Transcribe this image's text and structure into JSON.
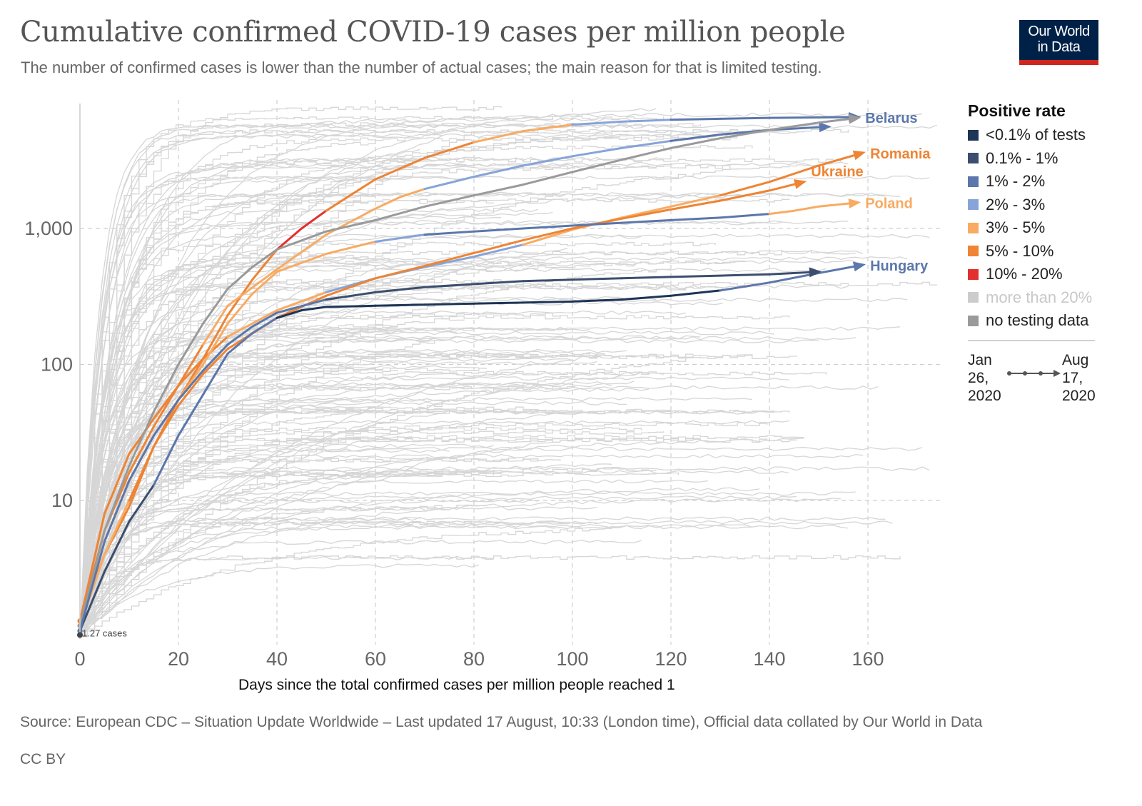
{
  "header": {
    "title": "Cumulative confirmed COVID-19 cases per million people",
    "subtitle": "The number of confirmed cases is lower than the number of actual cases; the main reason for that is limited testing.",
    "logo_line1": "Our World",
    "logo_line2": "in Data"
  },
  "footer": {
    "source": "Source: European CDC – Situation Update Worldwide – Last updated 17 August, 10:33 (London time), Official data collated by Our World in Data",
    "license": "CC BY"
  },
  "legend": {
    "title": "Positive rate",
    "items": [
      {
        "label": "<0.1% of tests",
        "color": "#1d3557"
      },
      {
        "label": "0.1% - 1%",
        "color": "#3c4e6e"
      },
      {
        "label": "1% - 2%",
        "color": "#5b77ab"
      },
      {
        "label": "2% - 3%",
        "color": "#86a4d9"
      },
      {
        "label": "3% - 5%",
        "color": "#f8ab62"
      },
      {
        "label": "5% - 10%",
        "color": "#ee8434"
      },
      {
        "label": "10% - 20%",
        "color": "#e3302e"
      },
      {
        "label": "more than 20%",
        "color": "#cccccc"
      },
      {
        "label": "no testing data",
        "color": "#9a9a9a"
      }
    ],
    "time_from": [
      "Jan",
      "26,",
      "2020"
    ],
    "time_to": [
      "Aug",
      "17,",
      "2020"
    ]
  },
  "chart_data": {
    "type": "line",
    "title": "Cumulative confirmed COVID-19 cases per million people",
    "subtitle": "The number of confirmed cases is lower than the number of actual cases; the main reason for that is limited testing.",
    "xlabel": "Days since the total confirmed cases per million people reached 1",
    "ylabel": "",
    "x_ticks": [
      0,
      20,
      40,
      60,
      80,
      100,
      120,
      140,
      160
    ],
    "y_ticks": [
      10,
      100,
      1000
    ],
    "y_tick_labels": [
      "10",
      "100",
      "1,000"
    ],
    "y_scale": "log",
    "xlim": [
      0,
      175
    ],
    "ylim": [
      1,
      7000
    ],
    "grid": true,
    "start_annotation": "1.27 cases",
    "color_by": "Positive rate",
    "series": [
      {
        "name": "Belarus",
        "label_color": "#5b77ab",
        "x": [
          0,
          5,
          10,
          15,
          20,
          25,
          30,
          35,
          40,
          45,
          50,
          60,
          70,
          80,
          90,
          100,
          110,
          120,
          130,
          140,
          150,
          158
        ],
        "y": [
          1.3,
          4,
          9,
          25,
          55,
          110,
          230,
          420,
          700,
          1000,
          1350,
          2300,
          3300,
          4300,
          5200,
          5800,
          6100,
          6300,
          6400,
          6500,
          6550,
          6600
        ],
        "bands": [
          "5% - 10%",
          "5% - 10%",
          "5% - 10%",
          "5% - 10%",
          "5% - 10%",
          "5% - 10%",
          "5% - 10%",
          "5% - 10%",
          "5% - 10%",
          "10% - 20%",
          "10% - 20%",
          "5% - 10%",
          "5% - 10%",
          "5% - 10%",
          "3% - 5%",
          "3% - 5%",
          "2% - 3%",
          "2% - 3%",
          "1% - 2%",
          "1% - 2%",
          "1% - 2%",
          "1% - 2%"
        ]
      },
      {
        "name": "Romania",
        "label_color": "#ee8434",
        "x": [
          0,
          5,
          10,
          15,
          20,
          25,
          30,
          40,
          50,
          60,
          70,
          80,
          90,
          100,
          110,
          120,
          130,
          140,
          150,
          159
        ],
        "y": [
          1.3,
          8,
          22,
          40,
          70,
          110,
          160,
          250,
          340,
          430,
          520,
          620,
          760,
          980,
          1200,
          1450,
          1750,
          2200,
          2900,
          3600
        ],
        "bands": [
          "5% - 10%",
          "5% - 10%",
          "5% - 10%",
          "5% - 10%",
          "5% - 10%",
          "5% - 10%",
          "5% - 10%",
          "3% - 5%",
          "3% - 5%",
          "2% - 3%",
          "2% - 3%",
          "2% - 3%",
          "2% - 3%",
          "3% - 5%",
          "3% - 5%",
          "3% - 5%",
          "3% - 5%",
          "5% - 10%",
          "5% - 10%",
          "5% - 10%"
        ]
      },
      {
        "name": "Ukraine",
        "label_color": "#ee8434",
        "x": [
          0,
          5,
          10,
          15,
          20,
          25,
          30,
          40,
          50,
          60,
          70,
          80,
          90,
          100,
          110,
          120,
          130,
          140,
          147
        ],
        "y": [
          1.2,
          4,
          10,
          25,
          50,
          85,
          130,
          220,
          320,
          430,
          530,
          660,
          820,
          1000,
          1180,
          1380,
          1600,
          1900,
          2200
        ],
        "bands": [
          "3% - 5%",
          "3% - 5%",
          "3% - 5%",
          "5% - 10%",
          "5% - 10%",
          "5% - 10%",
          "5% - 10%",
          "5% - 10%",
          "5% - 10%",
          "5% - 10%",
          "5% - 10%",
          "5% - 10%",
          "5% - 10%",
          "5% - 10%",
          "5% - 10%",
          "5% - 10%",
          "5% - 10%",
          "5% - 10%",
          "5% - 10%"
        ]
      },
      {
        "name": "Poland",
        "label_color": "#f8ab62",
        "x": [
          0,
          5,
          10,
          15,
          20,
          25,
          30,
          35,
          40,
          50,
          60,
          70,
          80,
          90,
          100,
          110,
          120,
          130,
          140,
          145,
          150,
          158
        ],
        "y": [
          1.2,
          5,
          14,
          30,
          55,
          100,
          200,
          330,
          480,
          650,
          800,
          900,
          950,
          1000,
          1050,
          1100,
          1150,
          1200,
          1280,
          1350,
          1450,
          1550
        ],
        "bands": [
          "3% - 5%",
          "3% - 5%",
          "3% - 5%",
          "3% - 5%",
          "3% - 5%",
          "3% - 5%",
          "3% - 5%",
          "3% - 5%",
          "3% - 5%",
          "3% - 5%",
          "3% - 5%",
          "2% - 3%",
          "1% - 2%",
          "1% - 2%",
          "1% - 2%",
          "1% - 2%",
          "1% - 2%",
          "1% - 2%",
          "1% - 2%",
          "3% - 5%",
          "3% - 5%",
          "3% - 5%"
        ]
      },
      {
        "name": "Hungary",
        "label_color": "#5b77ab",
        "x": [
          0,
          5,
          10,
          15,
          20,
          25,
          30,
          35,
          40,
          45,
          50,
          60,
          70,
          80,
          90,
          100,
          110,
          120,
          130,
          140,
          150,
          159
        ],
        "y": [
          1.1,
          3,
          7,
          13,
          30,
          60,
          120,
          170,
          220,
          250,
          265,
          270,
          275,
          280,
          285,
          290,
          300,
          320,
          350,
          400,
          470,
          540
        ],
        "bands": [
          "0.1% - 1%",
          "0.1% - 1%",
          "0.1% - 1%",
          "0.1% - 1%",
          "1% - 2%",
          "1% - 2%",
          "1% - 2%",
          "1% - 2%",
          "1% - 2%",
          "<0.1% of tests",
          "<0.1% of tests",
          "<0.1% of tests",
          "<0.1% of tests",
          "<0.1% of tests",
          "<0.1% of tests",
          "<0.1% of tests",
          "<0.1% of tests",
          "<0.1% of tests",
          "<0.1% of tests",
          "1% - 2%",
          "1% - 2%",
          "1% - 2%"
        ]
      },
      {
        "name": "",
        "label_color": "#5b77ab",
        "x": [
          0,
          5,
          10,
          15,
          20,
          25,
          30,
          40,
          50,
          60,
          65,
          70,
          80,
          90,
          100,
          110,
          120,
          130,
          140,
          152
        ],
        "y": [
          1.3,
          6,
          16,
          35,
          70,
          140,
          270,
          500,
          900,
          1400,
          1700,
          1950,
          2400,
          2900,
          3400,
          3900,
          4400,
          4900,
          5300,
          5600
        ],
        "bands": [
          "5% - 10%",
          "5% - 10%",
          "5% - 10%",
          "5% - 10%",
          "5% - 10%",
          "5% - 10%",
          "3% - 5%",
          "3% - 5%",
          "3% - 5%",
          "3% - 5%",
          "3% - 5%",
          "3% - 5%",
          "2% - 3%",
          "2% - 3%",
          "2% - 3%",
          "2% - 3%",
          "2% - 3%",
          "1% - 2%",
          "1% - 2%",
          "1% - 2%"
        ]
      },
      {
        "name": "",
        "label_color": "#9a9a9a",
        "x": [
          0,
          5,
          10,
          15,
          20,
          25,
          30,
          35,
          40,
          50,
          60,
          70,
          80,
          90,
          100,
          110,
          120,
          130,
          140,
          150,
          158
        ],
        "y": [
          1.2,
          6,
          18,
          45,
          100,
          200,
          360,
          520,
          700,
          950,
          1150,
          1450,
          1750,
          2100,
          2600,
          3200,
          3900,
          4600,
          5300,
          6000,
          6500
        ],
        "bands": [
          "no testing data",
          "no testing data",
          "no testing data",
          "no testing data",
          "no testing data",
          "no testing data",
          "no testing data",
          "no testing data",
          "no testing data",
          "no testing data",
          "no testing data",
          "no testing data",
          "no testing data",
          "no testing data",
          "no testing data",
          "no testing data",
          "no testing data",
          "no testing data",
          "no testing data",
          "no testing data",
          "no testing data"
        ]
      },
      {
        "name": "",
        "label_color": "#3c4e6e",
        "x": [
          0,
          5,
          10,
          15,
          20,
          25,
          30,
          35,
          40,
          50,
          60,
          70,
          80,
          90,
          100,
          110,
          120,
          130,
          140,
          150
        ],
        "y": [
          1.1,
          5,
          14,
          30,
          55,
          90,
          140,
          190,
          240,
          300,
          340,
          370,
          390,
          410,
          420,
          430,
          440,
          450,
          460,
          480
        ],
        "bands": [
          "1% - 2%",
          "1% - 2%",
          "1% - 2%",
          "1% - 2%",
          "1% - 2%",
          "1% - 2%",
          "1% - 2%",
          "1% - 2%",
          "1% - 2%",
          "1% - 2%",
          "0.1% - 1%",
          "0.1% - 1%",
          "0.1% - 1%",
          "0.1% - 1%",
          "0.1% - 1%",
          "0.1% - 1%",
          "0.1% - 1%",
          "0.1% - 1%",
          "0.1% - 1%",
          "0.1% - 1%"
        ]
      }
    ],
    "background_series_note": "Other countries (light grey)"
  }
}
